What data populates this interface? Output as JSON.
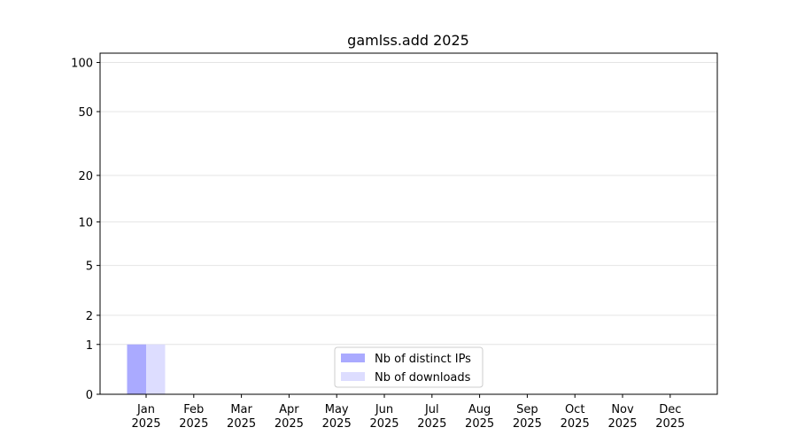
{
  "chart_data": {
    "type": "bar",
    "title": "gamlss.add 2025",
    "categories": [
      "Jan\n2025",
      "Feb\n2025",
      "Mar\n2025",
      "Apr\n2025",
      "May\n2025",
      "Jun\n2025",
      "Jul\n2025",
      "Aug\n2025",
      "Sep\n2025",
      "Oct\n2025",
      "Nov\n2025",
      "Dec\n2025"
    ],
    "series": [
      {
        "name": "Nb of distinct IPs",
        "color": "#aaaaff",
        "values": [
          1,
          0,
          0,
          0,
          0,
          0,
          0,
          0,
          0,
          0,
          0,
          0
        ]
      },
      {
        "name": "Nb of downloads",
        "color": "#ddddff",
        "values": [
          1,
          0,
          0,
          0,
          0,
          0,
          0,
          0,
          0,
          0,
          0,
          0
        ]
      }
    ],
    "yscale": "log1p",
    "ylim": [
      0,
      114
    ],
    "yticks": [
      0,
      1,
      2,
      5,
      10,
      20,
      50,
      100
    ],
    "grid": true,
    "legend": "lower center"
  }
}
